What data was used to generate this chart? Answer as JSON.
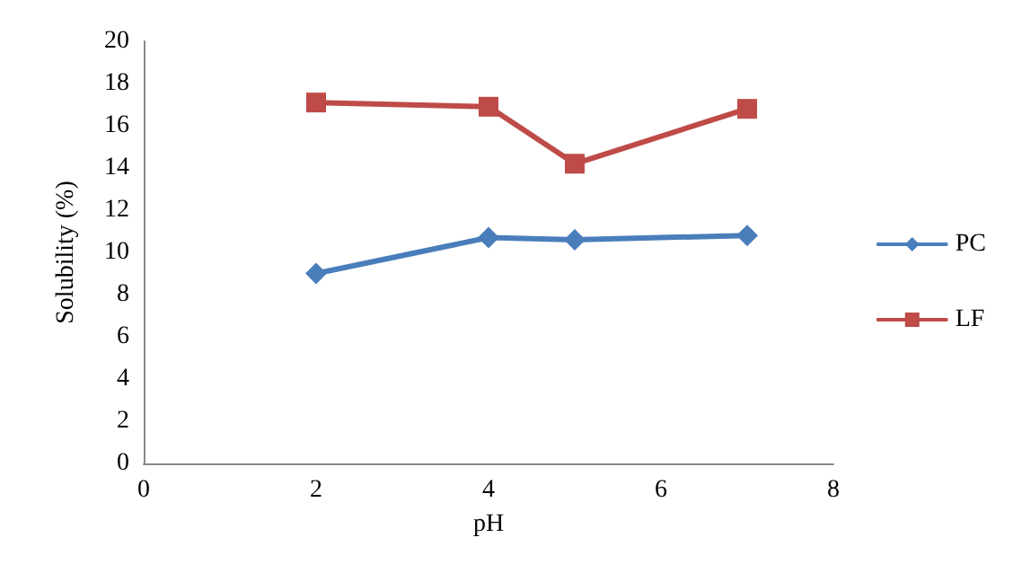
{
  "chart_data": {
    "type": "line",
    "xlabel": "pH",
    "ylabel": "Solubility (%)",
    "x": [
      2,
      4,
      5,
      7
    ],
    "series": [
      {
        "name": "PC",
        "color": "#4a7ebb",
        "marker": "diamond",
        "values": [
          9.0,
          10.7,
          10.6,
          10.8
        ]
      },
      {
        "name": "LF",
        "color": "#be4b48",
        "marker": "square",
        "values": [
          17.1,
          16.9,
          14.2,
          16.8
        ]
      }
    ],
    "xlim": [
      0,
      8
    ],
    "xticks": [
      0,
      2,
      4,
      6,
      8
    ],
    "ylim": [
      0,
      20
    ],
    "yticks": [
      0,
      2,
      4,
      6,
      8,
      10,
      12,
      14,
      16,
      18,
      20
    ],
    "grid": false,
    "legend": "right",
    "line_style": "solid"
  }
}
